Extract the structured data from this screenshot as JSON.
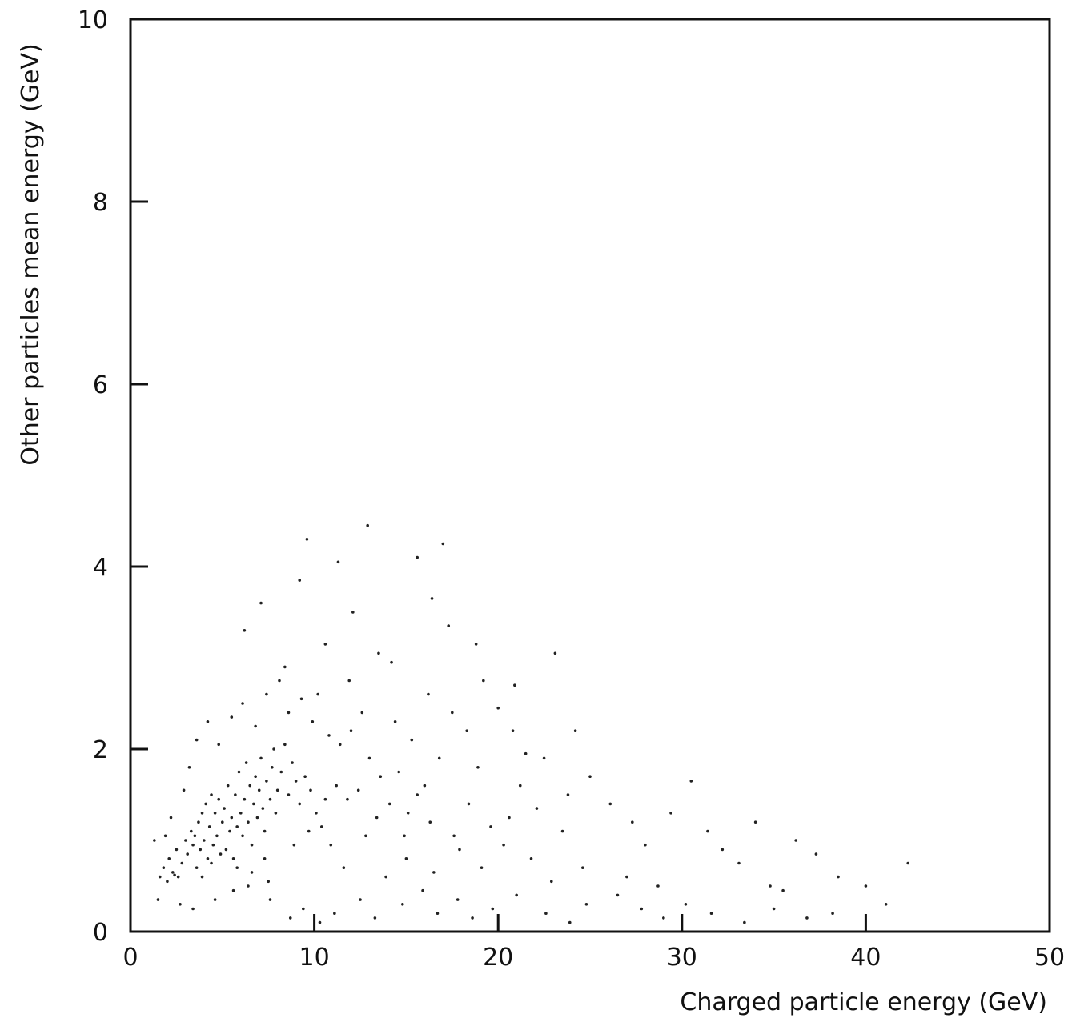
{
  "chart_data": {
    "type": "scatter",
    "title": "",
    "xlabel": "Charged particle energy (GeV)",
    "ylabel": "Other particles mean energy (GeV)",
    "xlim": [
      0,
      50
    ],
    "ylim": [
      0,
      10
    ],
    "xticks": [
      0,
      10,
      20,
      30,
      40,
      50
    ],
    "yticks": [
      0,
      2,
      4,
      6,
      8,
      10
    ],
    "xtick_labels": [
      "0",
      "10",
      "20",
      "30",
      "40",
      "50"
    ],
    "ytick_labels": [
      "0",
      "2",
      "4",
      "6",
      "8",
      "10"
    ],
    "grid": false,
    "legend": "none",
    "point_color": "#222222",
    "points": [
      [
        1.6,
        0.6
      ],
      [
        1.8,
        0.7
      ],
      [
        2.0,
        0.55
      ],
      [
        2.1,
        0.8
      ],
      [
        2.3,
        0.65
      ],
      [
        2.4,
        0.62
      ],
      [
        2.5,
        0.9
      ],
      [
        2.6,
        0.6
      ],
      [
        2.8,
        0.75
      ],
      [
        3.0,
        1.0
      ],
      [
        3.1,
        0.85
      ],
      [
        3.3,
        1.1
      ],
      [
        3.4,
        0.95
      ],
      [
        3.5,
        1.05
      ],
      [
        3.6,
        0.7
      ],
      [
        3.7,
        1.2
      ],
      [
        3.8,
        0.9
      ],
      [
        3.9,
        1.3
      ],
      [
        4.0,
        1.0
      ],
      [
        4.1,
        1.4
      ],
      [
        4.2,
        0.8
      ],
      [
        4.3,
        1.15
      ],
      [
        4.4,
        1.5
      ],
      [
        4.5,
        0.95
      ],
      [
        4.6,
        1.3
      ],
      [
        4.7,
        1.05
      ],
      [
        4.8,
        1.45
      ],
      [
        4.9,
        0.85
      ],
      [
        5.0,
        1.2
      ],
      [
        5.1,
        1.35
      ],
      [
        5.2,
        0.9
      ],
      [
        5.3,
        1.6
      ],
      [
        5.4,
        1.1
      ],
      [
        5.5,
        1.25
      ],
      [
        5.6,
        0.8
      ],
      [
        5.7,
        1.5
      ],
      [
        5.8,
        1.15
      ],
      [
        5.9,
        1.75
      ],
      [
        6.0,
        1.3
      ],
      [
        6.1,
        1.05
      ],
      [
        6.2,
        1.45
      ],
      [
        6.3,
        1.85
      ],
      [
        6.4,
        1.2
      ],
      [
        6.5,
        1.6
      ],
      [
        6.6,
        0.95
      ],
      [
        6.7,
        1.4
      ],
      [
        6.8,
        1.7
      ],
      [
        6.9,
        1.25
      ],
      [
        7.0,
        1.55
      ],
      [
        7.1,
        1.9
      ],
      [
        7.2,
        1.35
      ],
      [
        7.3,
        1.1
      ],
      [
        7.4,
        1.65
      ],
      [
        7.5,
        0.55
      ],
      [
        7.6,
        1.45
      ],
      [
        7.7,
        1.8
      ],
      [
        7.8,
        2.0
      ],
      [
        7.9,
        1.3
      ],
      [
        8.0,
        1.55
      ],
      [
        8.2,
        1.75
      ],
      [
        8.4,
        2.05
      ],
      [
        8.6,
        1.5
      ],
      [
        8.8,
        1.85
      ],
      [
        9.0,
        1.65
      ],
      [
        9.2,
        1.4
      ],
      [
        9.5,
        1.7
      ],
      [
        9.8,
        1.55
      ],
      [
        10.1,
        1.3
      ],
      [
        10.4,
        1.15
      ],
      [
        10.6,
        1.45
      ],
      [
        2.2,
        1.25
      ],
      [
        2.9,
        1.55
      ],
      [
        3.2,
        1.8
      ],
      [
        3.6,
        2.1
      ],
      [
        4.2,
        2.3
      ],
      [
        4.8,
        2.05
      ],
      [
        5.5,
        2.35
      ],
      [
        6.1,
        2.5
      ],
      [
        6.8,
        2.25
      ],
      [
        7.4,
        2.6
      ],
      [
        8.1,
        2.75
      ],
      [
        8.6,
        2.4
      ],
      [
        9.3,
        2.55
      ],
      [
        9.9,
        2.3
      ],
      [
        10.8,
        2.15
      ],
      [
        11.4,
        2.05
      ],
      [
        12.0,
        2.2
      ],
      [
        12.6,
        2.4
      ],
      [
        13.0,
        1.9
      ],
      [
        13.6,
        1.7
      ],
      [
        11.2,
        1.6
      ],
      [
        11.8,
        1.45
      ],
      [
        12.4,
        1.55
      ],
      [
        14.1,
        1.4
      ],
      [
        14.6,
        1.75
      ],
      [
        15.1,
        1.3
      ],
      [
        15.6,
        1.5
      ],
      [
        16.0,
        1.6
      ],
      [
        14.4,
        2.3
      ],
      [
        15.3,
        2.1
      ],
      [
        16.2,
        2.6
      ],
      [
        16.8,
        1.9
      ],
      [
        17.5,
        2.4
      ],
      [
        18.3,
        2.2
      ],
      [
        18.9,
        1.8
      ],
      [
        19.2,
        2.75
      ],
      [
        20.0,
        2.45
      ],
      [
        20.8,
        2.2
      ],
      [
        21.5,
        1.95
      ],
      [
        20.6,
        1.25
      ],
      [
        22.1,
        1.35
      ],
      [
        23.5,
        1.1
      ],
      [
        24.2,
        2.2
      ],
      [
        25.0,
        1.7
      ],
      [
        26.1,
        1.4
      ],
      [
        27.3,
        1.2
      ],
      [
        28.0,
        0.95
      ],
      [
        29.4,
        1.3
      ],
      [
        30.5,
        1.65
      ],
      [
        31.4,
        1.1
      ],
      [
        32.2,
        0.9
      ],
      [
        33.1,
        0.75
      ],
      [
        34.0,
        1.2
      ],
      [
        34.8,
        0.5
      ],
      [
        35.5,
        0.45
      ],
      [
        36.2,
        1.0
      ],
      [
        37.3,
        0.85
      ],
      [
        38.5,
        0.6
      ],
      [
        40.0,
        0.5
      ],
      [
        41.1,
        0.3
      ],
      [
        42.3,
        0.75
      ],
      [
        26.5,
        0.4
      ],
      [
        27.8,
        0.25
      ],
      [
        29.0,
        0.15
      ],
      [
        30.2,
        0.3
      ],
      [
        31.6,
        0.2
      ],
      [
        33.4,
        0.1
      ],
      [
        35.0,
        0.25
      ],
      [
        36.8,
        0.15
      ],
      [
        38.2,
        0.2
      ],
      [
        12.1,
        3.5
      ],
      [
        12.9,
        4.45
      ],
      [
        13.5,
        3.05
      ],
      [
        14.2,
        2.95
      ],
      [
        15.6,
        4.1
      ],
      [
        16.4,
        3.65
      ],
      [
        17.3,
        3.35
      ],
      [
        18.8,
        3.15
      ],
      [
        20.9,
        2.7
      ],
      [
        23.1,
        3.05
      ],
      [
        9.2,
        3.85
      ],
      [
        10.6,
        3.15
      ],
      [
        11.3,
        4.05
      ],
      [
        8.4,
        2.9
      ],
      [
        6.2,
        3.3
      ],
      [
        7.1,
        3.6
      ],
      [
        17.0,
        4.25
      ],
      [
        9.6,
        4.3
      ],
      [
        11.9,
        2.75
      ],
      [
        10.2,
        2.6
      ],
      [
        4.6,
        0.35
      ],
      [
        5.6,
        0.45
      ],
      [
        6.4,
        0.5
      ],
      [
        7.6,
        0.35
      ],
      [
        8.7,
        0.15
      ],
      [
        9.4,
        0.25
      ],
      [
        10.3,
        0.1
      ],
      [
        11.1,
        0.2
      ],
      [
        12.5,
        0.35
      ],
      [
        13.3,
        0.15
      ],
      [
        14.8,
        0.3
      ],
      [
        15.9,
        0.45
      ],
      [
        16.7,
        0.2
      ],
      [
        17.8,
        0.35
      ],
      [
        18.6,
        0.15
      ],
      [
        19.7,
        0.25
      ],
      [
        21.0,
        0.4
      ],
      [
        22.6,
        0.2
      ],
      [
        23.9,
        0.1
      ],
      [
        24.8,
        0.3
      ],
      [
        13.9,
        0.6
      ],
      [
        15.0,
        0.8
      ],
      [
        16.5,
        0.65
      ],
      [
        17.9,
        0.9
      ],
      [
        19.1,
        0.7
      ],
      [
        21.8,
        0.8
      ],
      [
        22.9,
        0.55
      ],
      [
        24.6,
        0.7
      ],
      [
        27.0,
        0.6
      ],
      [
        28.7,
        0.5
      ],
      [
        3.9,
        0.6
      ],
      [
        4.4,
        0.75
      ],
      [
        5.8,
        0.7
      ],
      [
        6.6,
        0.65
      ],
      [
        7.3,
        0.8
      ],
      [
        8.9,
        0.95
      ],
      [
        9.7,
        1.1
      ],
      [
        10.9,
        0.95
      ],
      [
        11.6,
        0.7
      ],
      [
        12.8,
        1.05
      ],
      [
        13.4,
        1.25
      ],
      [
        14.9,
        1.05
      ],
      [
        16.3,
        1.2
      ],
      [
        17.6,
        1.05
      ],
      [
        18.4,
        1.4
      ],
      [
        19.6,
        1.15
      ],
      [
        20.3,
        0.95
      ],
      [
        21.2,
        1.6
      ],
      [
        22.5,
        1.9
      ],
      [
        23.8,
        1.5
      ],
      [
        2.7,
        0.3
      ],
      [
        3.4,
        0.25
      ],
      [
        1.5,
        0.35
      ],
      [
        1.3,
        1.0
      ],
      [
        1.9,
        1.05
      ]
    ]
  }
}
